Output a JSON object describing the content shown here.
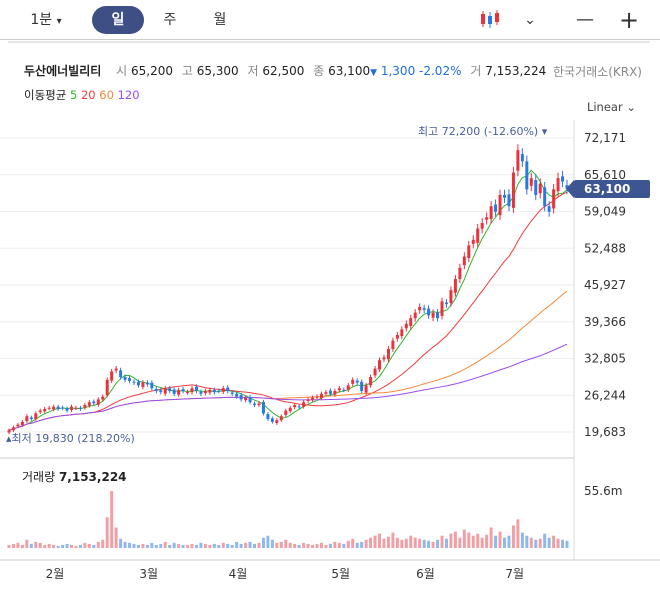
{
  "topbar": {
    "periods": [
      "1분",
      "일",
      "주",
      "월"
    ],
    "selected": "일",
    "minute_chevron": "▾",
    "chart_type_icon": "candlestick-icon",
    "chevron": "⌄",
    "minus": "—",
    "plus": "+"
  },
  "stock": {
    "name": "두산에너빌리티",
    "open_label": "시",
    "open": "65,200",
    "high_label": "고",
    "high": "65,300",
    "low_label": "저",
    "low": "62,500",
    "close_label": "종",
    "close": "63,100",
    "change_arrow": "▼",
    "change": "1,300",
    "change_pct": "-2.02%",
    "volume_label": "거",
    "volume": "7,153,224",
    "exchange": "한국거래소(KRX)"
  },
  "ma": {
    "label": "이동평균",
    "periods": [
      "5",
      "20",
      "60",
      "120"
    ],
    "colors": [
      "#2db82d",
      "#f03c3c",
      "#f5883a",
      "#9b4ef0"
    ]
  },
  "scale": "Linear ⌄",
  "colors": {
    "up": "#e8323c",
    "down": "#2a78e4",
    "tag": "#3d5591"
  },
  "chart_data": {
    "type": "candlestick",
    "y_ticks": [
      "72,171",
      "65,610",
      "59,049",
      "52,488",
      "45,927",
      "39,366",
      "32,805",
      "26,244",
      "19,683"
    ],
    "y_tick_values": [
      72171,
      65610,
      59049,
      52488,
      45927,
      39366,
      32805,
      26244,
      19683
    ],
    "ylim": [
      19683,
      72171
    ],
    "current_price": "63,100",
    "high_annotation": "최고 72,200 (-12.60%)",
    "low_annotation": "최저 19,830 (218.20%)",
    "months": [
      {
        "label": "2월",
        "index": 10
      },
      {
        "label": "3월",
        "index": 31
      },
      {
        "label": "4월",
        "index": 51
      },
      {
        "label": "5월",
        "index": 74
      },
      {
        "label": "6월",
        "index": 93
      },
      {
        "label": "7월",
        "index": 113
      }
    ],
    "closes": [
      20000,
      20500,
      21000,
      21500,
      22500,
      22000,
      23000,
      23500,
      23800,
      24000,
      24200,
      23800,
      24000,
      23500,
      24200,
      24000,
      23800,
      24500,
      25000,
      24800,
      25500,
      26000,
      29000,
      30500,
      31000,
      29500,
      29000,
      28800,
      28500,
      28000,
      28500,
      28200,
      27500,
      27000,
      26800,
      27500,
      27000,
      26500,
      27200,
      27000,
      26800,
      27500,
      27000,
      26500,
      27000,
      27200,
      26800,
      27000,
      27500,
      27000,
      26500,
      26000,
      25500,
      25800,
      25000,
      24500,
      24800,
      23000,
      22000,
      21500,
      21800,
      22500,
      23500,
      24000,
      24500,
      24200,
      25000,
      25500,
      25800,
      26000,
      26500,
      26800,
      26500,
      27000,
      27500,
      27200,
      28000,
      29000,
      28500,
      27000,
      28000,
      29500,
      31000,
      32500,
      33000,
      34500,
      36000,
      37000,
      38000,
      39000,
      40000,
      41000,
      42000,
      41500,
      40500,
      41000,
      40000,
      43000,
      42500,
      45000,
      47000,
      49000,
      51000,
      53000,
      54000,
      56000,
      57000,
      58000,
      60000,
      59000,
      62000,
      61500,
      60000,
      66000,
      70000,
      68000,
      63000,
      65000,
      62000,
      64000,
      60000,
      59000,
      63000,
      65000,
      64400,
      63100
    ],
    "volume_label": "거래량",
    "volume_value": "7,153,224",
    "volume_tick": "55.6m",
    "volume_max": 55.6,
    "volumes": [
      3,
      4,
      5,
      3,
      8,
      4,
      6,
      5,
      3,
      4,
      3,
      2,
      3,
      4,
      3,
      2,
      3,
      5,
      4,
      3,
      6,
      8,
      30,
      55.6,
      20,
      9,
      6,
      5,
      4,
      3,
      4,
      3,
      5,
      3,
      4,
      6,
      3,
      5,
      4,
      3,
      3,
      4,
      3,
      5,
      4,
      3,
      4,
      3,
      5,
      4,
      3,
      6,
      4,
      5,
      6,
      4,
      5,
      10,
      12,
      8,
      5,
      6,
      8,
      5,
      4,
      3,
      5,
      4,
      3,
      4,
      5,
      3,
      4,
      6,
      5,
      4,
      7,
      9,
      5,
      6,
      8,
      10,
      12,
      14,
      9,
      11,
      15,
      10,
      8,
      9,
      12,
      10,
      9,
      8,
      7,
      6,
      8,
      12,
      9,
      14,
      16,
      10,
      18,
      15,
      12,
      14,
      10,
      13,
      20,
      12,
      16,
      10,
      12,
      22,
      28,
      15,
      12,
      10,
      8,
      9,
      14,
      10,
      12,
      9,
      8,
      7
    ]
  }
}
